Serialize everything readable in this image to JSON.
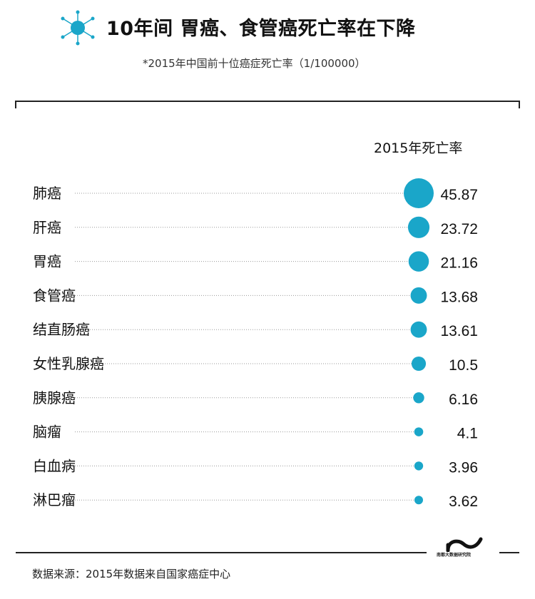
{
  "header": {
    "title": "10年间 胃癌、食管癌死亡率在下降",
    "subtitle": "*2015年中国前十位癌症死亡率（1/100000）"
  },
  "chart_data": {
    "type": "bubble-table",
    "column_header": "2015年死亡率",
    "categories": [
      "肺癌",
      "肝癌",
      "胃癌",
      "食管癌",
      "结直肠癌",
      "女性乳腺癌",
      "胰腺癌",
      "脑瘤",
      "白血病",
      "淋巴瘤"
    ],
    "values": [
      45.87,
      23.72,
      21.16,
      13.68,
      13.61,
      10.5,
      6.16,
      4.1,
      3.96,
      3.62
    ],
    "value_labels": [
      "45.87",
      "23.72",
      "21.16",
      "13.68",
      "13.61",
      "10.5",
      "6.16",
      "4.1",
      "3.96",
      "3.62"
    ],
    "bubble_color": "#1aa6c9"
  },
  "footer": {
    "source": "数据来源：2015年数据来自国家癌症中心",
    "brand": "南都大数据研究院"
  },
  "colors": {
    "accent": "#1aa6c9",
    "dotted_line": "#9a9a9a",
    "frame": "#222222"
  }
}
